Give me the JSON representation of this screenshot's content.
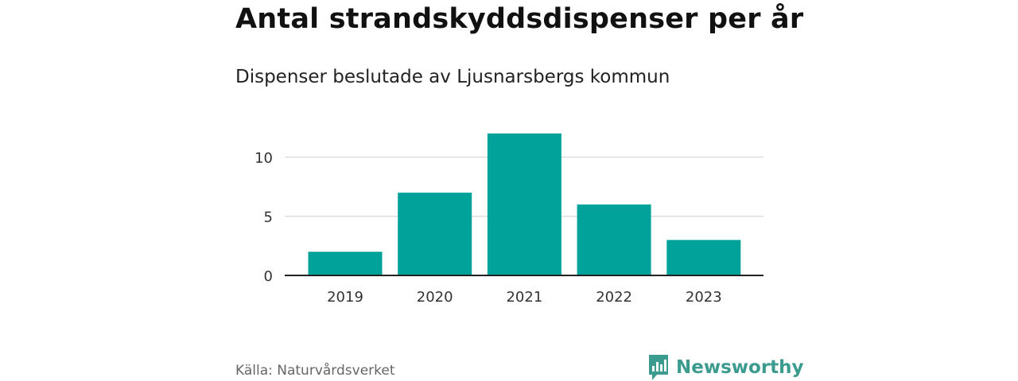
{
  "title": "Antal strandskyddsdispenser per år",
  "subtitle": "Dispenser beslutade av Ljusnarsbergs kommun",
  "source": "Källa: Naturvårdsverket",
  "brand": {
    "name": "Newsworthy",
    "logo_icon": "newsworthy-logo-icon",
    "color": "#3a9b8e"
  },
  "colors": {
    "bar": "#00a29a",
    "grid": "#dddddd",
    "axis": "#222222",
    "tick_text": "#333333"
  },
  "chart_data": {
    "type": "bar",
    "title": "Antal strandskyddsdispenser per år",
    "subtitle": "Dispenser beslutade av Ljusnarsbergs kommun",
    "categories": [
      "2019",
      "2020",
      "2021",
      "2022",
      "2023"
    ],
    "values": [
      2,
      7,
      12,
      6,
      3
    ],
    "xlabel": "",
    "ylabel": "",
    "ylim": [
      0,
      12
    ],
    "yticks": [
      0,
      5,
      10
    ],
    "grid": true,
    "legend": null
  }
}
